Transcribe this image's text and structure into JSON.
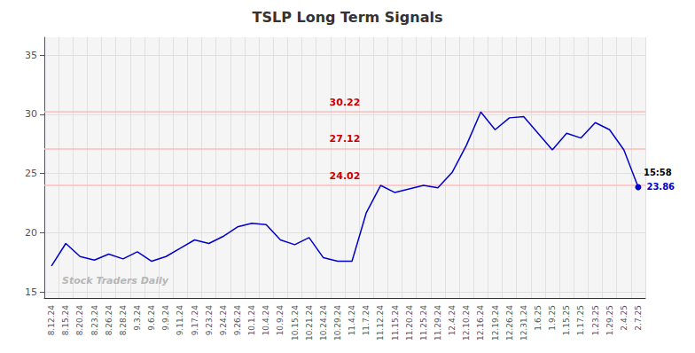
{
  "chart_data": {
    "type": "line",
    "title": "TSLP Long Term Signals",
    "categories": [
      "8.12.24",
      "8.15.24",
      "8.20.24",
      "8.23.24",
      "8.26.24",
      "8.28.24",
      "9.3.24",
      "9.6.24",
      "9.9.24",
      "9.11.24",
      "9.17.24",
      "9.23.24",
      "9.24.24",
      "9.26.24",
      "10.1.24",
      "10.4.24",
      "10.9.24",
      "10.15.24",
      "10.21.24",
      "10.24.24",
      "10.29.24",
      "11.4.24",
      "11.7.24",
      "11.12.24",
      "11.15.24",
      "11.20.24",
      "11.25.24",
      "11.29.24",
      "12.4.24",
      "12.10.24",
      "12.16.24",
      "12.19.24",
      "12.26.24",
      "12.31.24",
      "1.6.25",
      "1.9.25",
      "1.15.25",
      "1.17.25",
      "1.23.25",
      "1.29.25",
      "2.4.25",
      "2.7.25"
    ],
    "values": [
      17.2,
      19.1,
      18.0,
      17.7,
      18.2,
      17.8,
      18.4,
      17.6,
      18.0,
      18.7,
      19.4,
      19.1,
      19.7,
      20.5,
      20.8,
      20.7,
      19.4,
      19.0,
      19.6,
      17.9,
      17.6,
      17.6,
      21.7,
      24.0,
      23.4,
      23.7,
      24.0,
      23.8,
      25.1,
      27.4,
      30.2,
      28.7,
      29.7,
      29.8,
      28.4,
      27.0,
      28.4,
      28.0,
      29.3,
      28.7,
      27.0,
      23.86
    ],
    "color": "#0000cc",
    "ylim": [
      14.5,
      36.5
    ],
    "yticks": [
      15,
      20,
      25,
      30,
      35
    ],
    "grid": true,
    "hlines": [
      {
        "value": 24.02,
        "label": "24.02"
      },
      {
        "value": 27.12,
        "label": "27.12"
      },
      {
        "value": 30.22,
        "label": "30.22"
      }
    ],
    "hline_color": "#ffbbbb",
    "hline_label_color": "#cc0000",
    "annotations": [
      {
        "text": "15:58",
        "color": "#000000"
      },
      {
        "text": "23.86",
        "color": "#0000cc"
      }
    ],
    "watermark": "Stock Traders Daily"
  }
}
